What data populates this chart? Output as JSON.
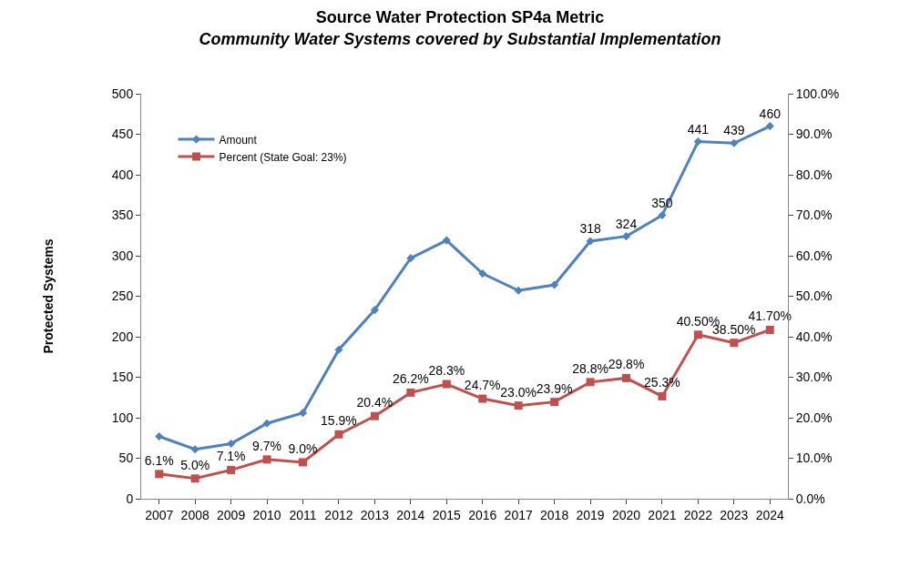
{
  "chart_data": {
    "type": "line",
    "title": "Source Water Protection SP4a Metric",
    "subtitle": "Community Water Systems covered by Substantial Implementation",
    "ylabel": "Protected Systems",
    "categories": [
      "2007",
      "2008",
      "2009",
      "2010",
      "2011",
      "2012",
      "2013",
      "2014",
      "2015",
      "2016",
      "2017",
      "2018",
      "2019",
      "2020",
      "2021",
      "2022",
      "2023",
      "2024"
    ],
    "series": [
      {
        "name": "Amount",
        "color": "#4f81bd",
        "marker": "diamond",
        "values": [
          77,
          61,
          68,
          93,
          106,
          184,
          233,
          297,
          319,
          278,
          257,
          264,
          318,
          324,
          350,
          441,
          439,
          460
        ],
        "value_labels": [
          null,
          null,
          null,
          null,
          null,
          null,
          null,
          null,
          null,
          null,
          null,
          null,
          "318",
          "324",
          "350",
          "441",
          "439",
          "460"
        ]
      },
      {
        "name": "Percent (State Goal: 23%)",
        "color": "#c0504d",
        "marker": "square",
        "axis": "y2",
        "values": [
          6.1,
          5.0,
          7.1,
          9.7,
          9.0,
          15.9,
          20.4,
          26.2,
          28.3,
          24.7,
          23.0,
          23.9,
          28.8,
          29.8,
          25.3,
          40.5,
          38.5,
          41.7
        ],
        "value_labels": [
          "6.1%",
          "5.0%",
          "7.1%",
          "9.7%",
          "9.0%",
          "15.9%",
          "20.4%",
          "26.2%",
          "28.3%",
          "24.7%",
          "23.0%",
          "23.9%",
          "28.8%",
          "29.8%",
          "25.3%",
          "40.50%",
          "38.50%",
          "41.70%"
        ]
      }
    ],
    "ylim": [
      0,
      500
    ],
    "yticks": [
      0,
      50,
      100,
      150,
      200,
      250,
      300,
      350,
      400,
      450,
      500
    ],
    "y2lim": [
      0,
      100
    ],
    "y2ticks": [
      {
        "value": 0,
        "label": "0.0%"
      },
      {
        "value": 10,
        "label": "10.0%"
      },
      {
        "value": 20,
        "label": "20.0%"
      },
      {
        "value": 30,
        "label": "30.0%"
      },
      {
        "value": 40,
        "label": "40.0%"
      },
      {
        "value": 50,
        "label": "50.0%"
      },
      {
        "value": 60,
        "label": "60.0%"
      },
      {
        "value": 70,
        "label": "70.0%"
      },
      {
        "value": 80,
        "label": "80.0%"
      },
      {
        "value": 90,
        "label": "90.0%"
      },
      {
        "value": 100,
        "label": "100.0%"
      }
    ],
    "legend": "top left",
    "line_style": "solid"
  }
}
